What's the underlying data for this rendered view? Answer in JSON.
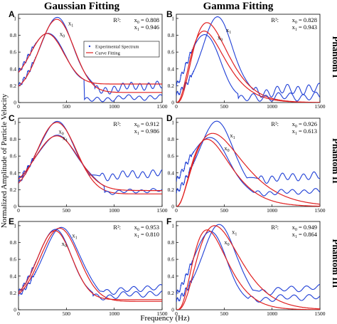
{
  "figure": {
    "col_titles": [
      "Gaussian Fitting",
      "Gamma Fitting"
    ],
    "row_labels": [
      "Phantom I",
      "Phantom II",
      "Phantom III"
    ],
    "xlabel": "Frequency (Hz)",
    "ylabel": "Normalized Amplitude of Particle Velocity",
    "legend": [
      "Experimental Spectrum",
      "Curve Fitting"
    ],
    "colors": {
      "experimental": "#1f3fd6",
      "fit": "#e02020"
    }
  },
  "chart_data": [
    {
      "panel": "A",
      "type": "line",
      "fit": "gaussian",
      "xlim": [
        0,
        1500
      ],
      "ylim": [
        0,
        1.05
      ],
      "xticks": [
        "0",
        "500",
        "1000",
        "1500"
      ],
      "yticks": [
        "0",
        "0.2",
        "0.4",
        "0.6",
        "0.8",
        "1"
      ],
      "r2_label": "R²:",
      "r2": [
        {
          "name": "x0",
          "value": "0.808"
        },
        {
          "name": "x1",
          "value": "0.946"
        }
      ],
      "curve_labels": [
        {
          "text": "x1",
          "x": 520,
          "y": 0.92
        },
        {
          "text": "x0",
          "x": 430,
          "y": 0.79
        }
      ],
      "show_legend": true,
      "series": [
        {
          "role": "experimental",
          "mu": 400,
          "sigma": 180,
          "peak": 1.0,
          "y0": 0.12,
          "floor": 0.15,
          "tail": 0.05,
          "osc": 0.04,
          "oscPeriod": 90,
          "wobble": 0.015,
          "jitter": 0.025
        },
        {
          "role": "fit",
          "mu": 400,
          "sigma": 180,
          "peak": 0.99,
          "y0": 0.12
        },
        {
          "role": "experimental",
          "mu": 300,
          "sigma": 175,
          "peak": 0.83,
          "y0": 0.22,
          "floor": 0.03,
          "tail": 0.03,
          "osc": 0.025,
          "oscPeriod": 110,
          "wobble": 0.01,
          "jitter": 0.025
        },
        {
          "role": "fit",
          "mu": 300,
          "sigma": 175,
          "peak": 0.82,
          "y0": 0.22
        }
      ]
    },
    {
      "panel": "B",
      "type": "line",
      "fit": "gamma",
      "xlim": [
        0,
        1500
      ],
      "ylim": [
        0,
        1.05
      ],
      "xticks": [
        "0",
        "500",
        "1000",
        "1500"
      ],
      "yticks": [
        "0",
        "0.2",
        "0.4",
        "0.6",
        "0.8",
        "1"
      ],
      "r2_label": "R²:",
      "r2": [
        {
          "name": "x0",
          "value": "0.828"
        },
        {
          "name": "x1",
          "value": "0.943"
        }
      ],
      "curve_labels": [
        {
          "text": "x1",
          "x": 520,
          "y": 0.84
        },
        {
          "text": "x0",
          "x": 430,
          "y": 0.75
        }
      ],
      "show_legend": false,
      "series": [
        {
          "role": "experimental",
          "mu": 430,
          "sigma": 170,
          "peak": 1.0,
          "y0": 0.05,
          "floor": 0.12,
          "tail": 0.04,
          "osc": 0.05,
          "oscPeriod": 110,
          "wobble": 0.02,
          "jitter": 0.03
        },
        {
          "role": "fit",
          "xp": 320,
          "peak": 0.95,
          "k": 3.0
        },
        {
          "role": "experimental",
          "mu": 290,
          "sigma": 160,
          "peak": 0.82,
          "y0": 0.05,
          "floor": 0.05,
          "tail": 0.02,
          "osc": 0.04,
          "oscPeriod": 130,
          "wobble": 0.015,
          "jitter": 0.03
        },
        {
          "role": "fit",
          "xp": 290,
          "peak": 0.85,
          "k": 2.6
        }
      ]
    },
    {
      "panel": "C",
      "type": "line",
      "fit": "gaussian",
      "xlim": [
        0,
        1500
      ],
      "ylim": [
        0,
        1.05
      ],
      "xticks": [
        "0",
        "500",
        "1000",
        "1500"
      ],
      "yticks": [
        "0",
        "0.2",
        "0.4",
        "0.6",
        "0.8",
        "1"
      ],
      "r2_label": "R²:",
      "r2": [
        {
          "name": "x0",
          "value": "0.912"
        },
        {
          "name": "x1",
          "value": "0.986"
        }
      ],
      "curve_labels": [
        {
          "text": "x0",
          "x": 420,
          "y": 0.87
        },
        {
          "text": "x1",
          "x": 460,
          "y": 0.79
        }
      ],
      "show_legend": false,
      "series": [
        {
          "role": "experimental",
          "mu": 400,
          "sigma": 205,
          "peak": 1.0,
          "y0": 0.15,
          "floor": 0.36,
          "tail": 0.03,
          "osc": 0.04,
          "oscPeriod": 105,
          "wobble": 0.015,
          "jitter": 0.02
        },
        {
          "role": "fit",
          "mu": 400,
          "sigma": 205,
          "peak": 1.0,
          "y0": 0.15
        },
        {
          "role": "experimental",
          "mu": 400,
          "sigma": 225,
          "peak": 0.84,
          "y0": 0.19,
          "floor": 0.17,
          "tail": 0.02,
          "osc": 0.02,
          "oscPeriod": 120,
          "wobble": 0.01,
          "jitter": 0.02
        },
        {
          "role": "fit",
          "mu": 400,
          "sigma": 225,
          "peak": 0.84,
          "y0": 0.19
        }
      ]
    },
    {
      "panel": "D",
      "type": "line",
      "fit": "gamma",
      "xlim": [
        0,
        1500
      ],
      "ylim": [
        0,
        1.05
      ],
      "xticks": [
        "0",
        "500",
        "1000",
        "1500"
      ],
      "yticks": [
        "0",
        "0.2",
        "0.4",
        "0.6",
        "0.8",
        "1"
      ],
      "r2_label": "R²:",
      "r2": [
        {
          "name": "x0",
          "value": "0.926"
        },
        {
          "name": "x1",
          "value": "0.613"
        }
      ],
      "curve_labels": [
        {
          "text": "x1",
          "x": 560,
          "y": 0.82
        },
        {
          "text": "x0",
          "x": 500,
          "y": 0.67
        }
      ],
      "show_legend": false,
      "series": [
        {
          "role": "experimental",
          "mu": 420,
          "sigma": 200,
          "peak": 1.0,
          "y0": 0.06,
          "floor": 0.33,
          "tail": 0.03,
          "osc": 0.04,
          "oscPeriod": 110,
          "wobble": 0.015,
          "jitter": 0.03
        },
        {
          "role": "fit",
          "xp": 380,
          "peak": 0.87,
          "k": 2.2
        },
        {
          "role": "experimental",
          "mu": 340,
          "sigma": 220,
          "peak": 0.82,
          "y0": 0.08,
          "floor": 0.16,
          "tail": 0.02,
          "osc": 0.025,
          "oscPeriod": 120,
          "wobble": 0.01,
          "jitter": 0.03
        },
        {
          "role": "fit",
          "xp": 320,
          "peak": 0.8,
          "k": 2.5
        }
      ]
    },
    {
      "panel": "E",
      "type": "line",
      "fit": "gaussian",
      "xlim": [
        0,
        1500
      ],
      "ylim": [
        0,
        1.05
      ],
      "xticks": [
        "0",
        "500",
        "1000",
        "1500"
      ],
      "yticks": [
        "0",
        "0.2",
        "0.4",
        "0.6",
        "0.8",
        "1"
      ],
      "r2_label": "R²:",
      "r2": [
        {
          "name": "x0",
          "value": "0.953"
        },
        {
          "name": "x1",
          "value": "0.810"
        }
      ],
      "curve_labels": [
        {
          "text": "x1",
          "x": 560,
          "y": 0.86
        },
        {
          "text": "x0",
          "x": 450,
          "y": 0.76
        }
      ],
      "show_legend": false,
      "series": [
        {
          "role": "experimental",
          "mu": 450,
          "sigma": 200,
          "peak": 0.97,
          "y0": 0.1,
          "floor": 0.22,
          "tail": 0.04,
          "osc": 0.03,
          "oscPeriod": 140,
          "wobble": 0.01,
          "jitter": 0.02
        },
        {
          "role": "fit",
          "mu": 430,
          "sigma": 200,
          "peak": 0.97,
          "y0": 0.1
        },
        {
          "role": "experimental",
          "mu": 380,
          "sigma": 180,
          "peak": 0.95,
          "y0": 0.12,
          "floor": 0.15,
          "tail": 0.04,
          "osc": 0.03,
          "oscPeriod": 140,
          "wobble": 0.01,
          "jitter": 0.02
        },
        {
          "role": "fit",
          "mu": 380,
          "sigma": 180,
          "peak": 0.94,
          "y0": 0.12
        }
      ]
    },
    {
      "panel": "F",
      "type": "line",
      "fit": "gamma",
      "xlim": [
        0,
        1500
      ],
      "ylim": [
        0,
        1.05
      ],
      "xticks": [
        "0",
        "500",
        "1000",
        "1500"
      ],
      "yticks": [
        "0",
        "0.2",
        "0.4",
        "0.6",
        "0.8",
        "1"
      ],
      "r2_label": "R²:",
      "r2": [
        {
          "name": "x0",
          "value": "0.949"
        },
        {
          "name": "x1",
          "value": "0.864"
        }
      ],
      "curve_labels": [
        {
          "text": "x1",
          "x": 580,
          "y": 0.9
        },
        {
          "text": "x0",
          "x": 500,
          "y": 0.78
        }
      ],
      "show_legend": false,
      "series": [
        {
          "role": "experimental",
          "mu": 450,
          "sigma": 190,
          "peak": 1.0,
          "y0": 0.04,
          "floor": 0.22,
          "tail": 0.04,
          "osc": 0.03,
          "oscPeriod": 150,
          "wobble": 0.015,
          "jitter": 0.03
        },
        {
          "role": "fit",
          "xp": 400,
          "peak": 1.0,
          "k": 3.2
        },
        {
          "role": "experimental",
          "mu": 350,
          "sigma": 180,
          "peak": 0.93,
          "y0": 0.05,
          "floor": 0.12,
          "tail": 0.03,
          "osc": 0.03,
          "oscPeriod": 150,
          "wobble": 0.01,
          "jitter": 0.03
        },
        {
          "role": "fit",
          "xp": 320,
          "peak": 0.95,
          "k": 3.2
        }
      ]
    }
  ]
}
